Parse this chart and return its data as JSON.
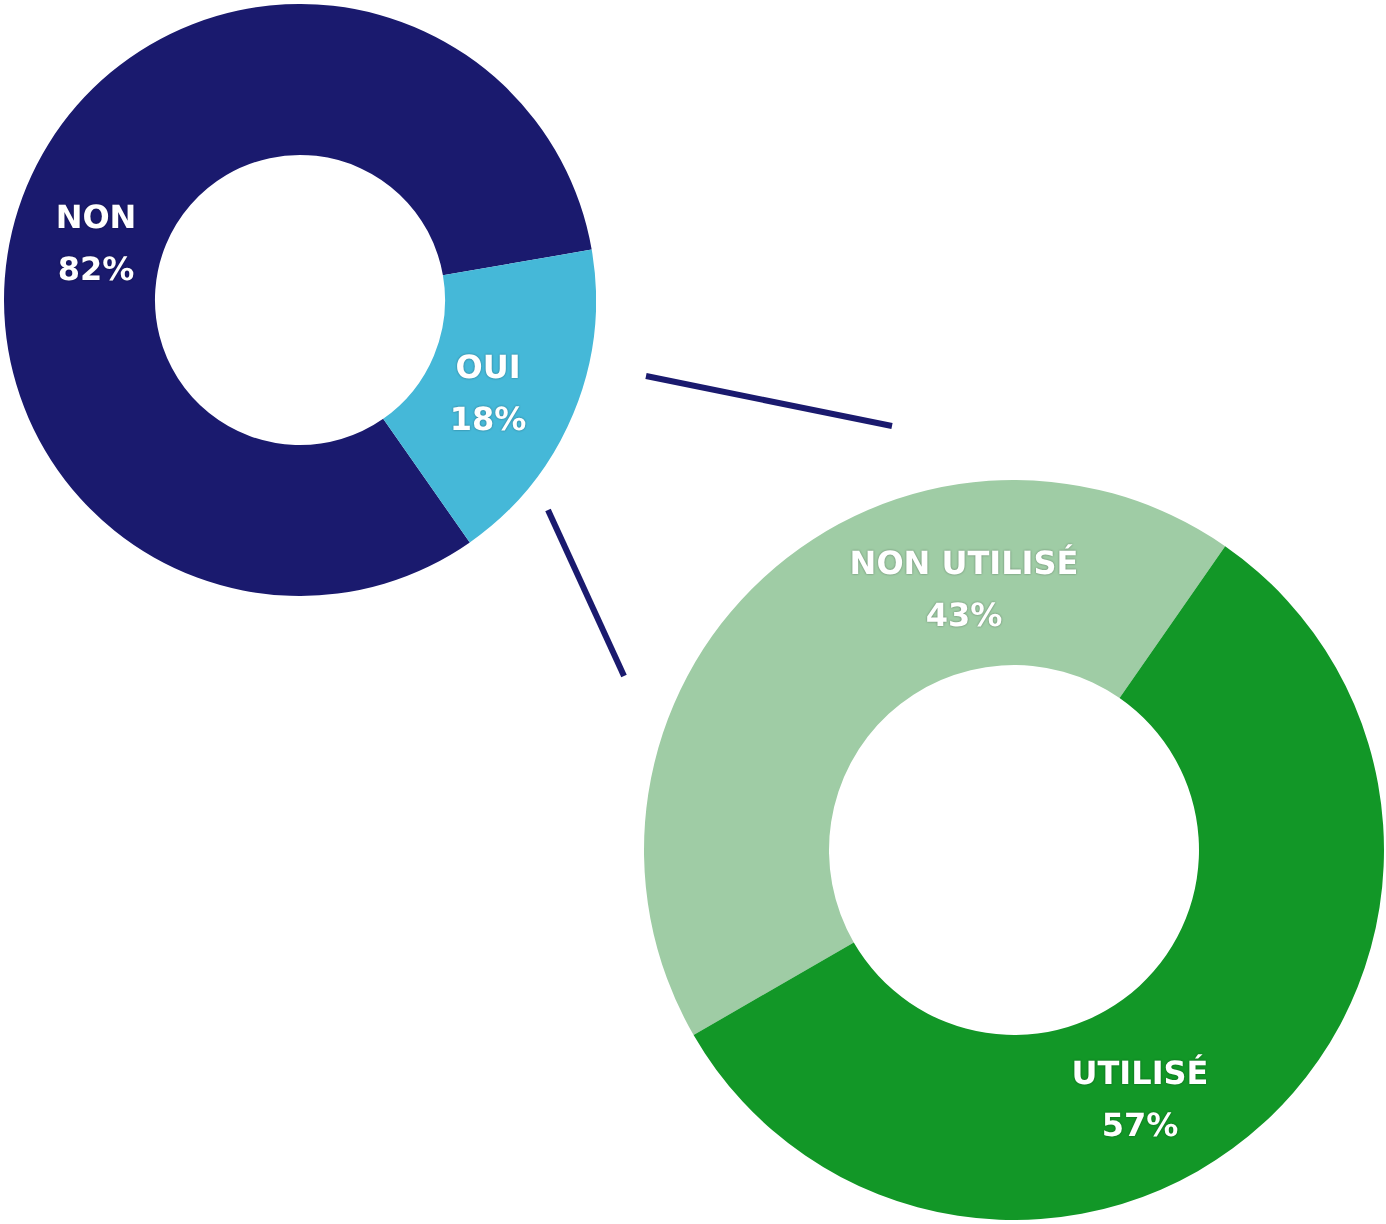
{
  "chart_data": [
    {
      "type": "donut",
      "categories": [
        "NON",
        "OUI"
      ],
      "values": [
        82,
        18
      ],
      "colors": [
        "#1a1a6e",
        "#45b8d8"
      ],
      "value_labels": [
        "82%",
        "18%"
      ],
      "legend": false
    },
    {
      "type": "donut",
      "categories": [
        "NON UTILISÉ",
        "UTILISÉ"
      ],
      "values": [
        43,
        57
      ],
      "colors": [
        "#9fcca5",
        "#129727"
      ],
      "value_labels": [
        "43%",
        "57%"
      ],
      "legend": false
    }
  ]
}
